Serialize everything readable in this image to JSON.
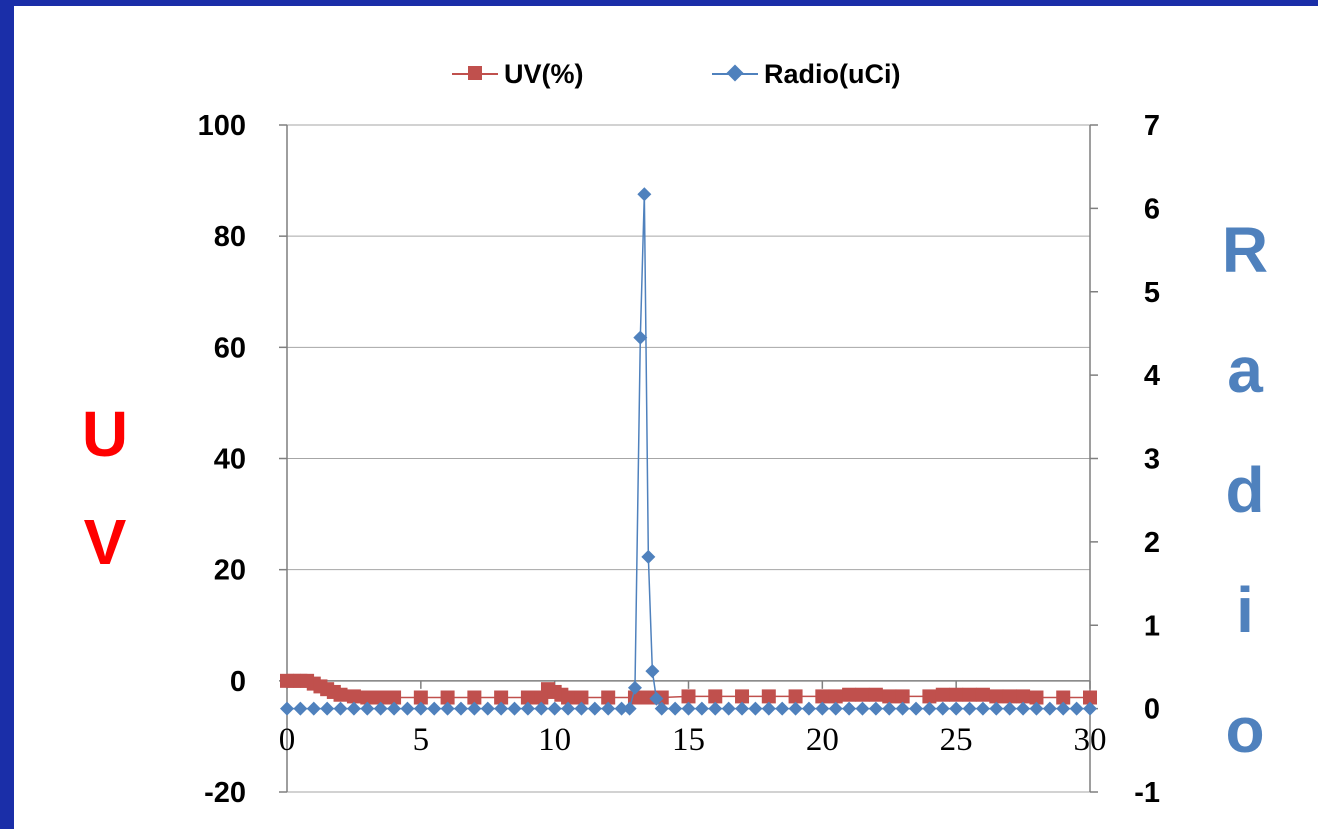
{
  "chart_data": {
    "type": "line",
    "title": "",
    "legend": {
      "placement": "top",
      "entries": [
        "UV(%)",
        "Radio(uCi)"
      ]
    },
    "xlabel": "",
    "ylabel_left": "UV",
    "ylabel_right": "Radio",
    "xlim": [
      0,
      30
    ],
    "ylim_left": [
      -20,
      100
    ],
    "ylim_right": [
      -1,
      7
    ],
    "x_ticks": [
      "0",
      "5",
      "10",
      "15",
      "20",
      "25",
      "30"
    ],
    "y_left_ticks": [
      "-20",
      "0",
      "20",
      "40",
      "60",
      "80",
      "100"
    ],
    "y_right_ticks": [
      "-1",
      "0",
      "1",
      "2",
      "3",
      "4",
      "5",
      "6",
      "7"
    ],
    "grid": true,
    "x_axis_at": 0,
    "colors": {
      "UV(%)": "#c0504d",
      "Radio(uCi)": "#4f81bd"
    },
    "series": [
      {
        "name": "UV(%)",
        "axis": "left",
        "marker": "square",
        "x": [
          0,
          0.25,
          0.5,
          0.75,
          1.0,
          1.25,
          1.5,
          1.75,
          2.0,
          2.5,
          3.0,
          3.5,
          4.0,
          5.0,
          6.0,
          7.0,
          8.0,
          9.0,
          9.5,
          9.75,
          10.0,
          10.25,
          10.5,
          11.0,
          12.0,
          13.0,
          13.25,
          13.5,
          13.75,
          14.0,
          15.0,
          16.0,
          17.0,
          18.0,
          19.0,
          20.0,
          20.5,
          21.0,
          21.5,
          22.0,
          22.5,
          23.0,
          24.0,
          24.5,
          25.0,
          25.5,
          26.0,
          26.5,
          27.0,
          27.5,
          28.0,
          29.0,
          30.0
        ],
        "y": [
          0,
          0,
          0,
          0,
          -0.5,
          -1,
          -1.5,
          -2,
          -2.5,
          -2.8,
          -3,
          -3,
          -3,
          -3,
          -3,
          -3,
          -3,
          -3,
          -3,
          -1.5,
          -2,
          -2.5,
          -3,
          -3,
          -3,
          -3,
          -3,
          -3,
          -3,
          -3,
          -2.8,
          -2.8,
          -2.8,
          -2.8,
          -2.8,
          -2.8,
          -2.8,
          -2.5,
          -2.5,
          -2.5,
          -2.8,
          -2.8,
          -2.8,
          -2.5,
          -2.5,
          -2.5,
          -2.5,
          -2.8,
          -2.8,
          -2.8,
          -3,
          -3,
          -3
        ]
      },
      {
        "name": "Radio(uCi)",
        "axis": "right",
        "marker": "diamond",
        "x": [
          0,
          0.5,
          1,
          1.5,
          2,
          2.5,
          3,
          3.5,
          4,
          4.5,
          5,
          5.5,
          6,
          6.5,
          7,
          7.5,
          8,
          8.5,
          9,
          9.5,
          10,
          10.5,
          11,
          11.5,
          12,
          12.5,
          12.8,
          13.0,
          13.2,
          13.35,
          13.5,
          13.65,
          13.8,
          14.0,
          14.5,
          15,
          15.5,
          16,
          16.5,
          17,
          17.5,
          18,
          18.5,
          19,
          19.5,
          20,
          20.5,
          21,
          21.5,
          22,
          22.5,
          23,
          23.5,
          24,
          24.5,
          25,
          25.5,
          26,
          26.5,
          27,
          27.5,
          28,
          28.5,
          29,
          29.5,
          30
        ],
        "y": [
          0,
          0,
          0,
          0,
          0,
          0,
          0,
          0,
          0,
          0,
          0,
          0,
          0,
          0,
          0,
          0,
          0,
          0,
          0,
          0,
          0,
          0,
          0,
          0,
          0,
          0,
          0,
          0.25,
          4.45,
          6.17,
          1.82,
          0.45,
          0.12,
          0,
          0,
          0,
          0,
          0,
          0,
          0,
          0,
          0,
          0,
          0,
          0,
          0,
          0,
          0,
          0,
          0,
          0,
          0,
          0,
          0,
          0,
          0,
          0,
          0,
          0,
          0,
          0,
          0,
          0,
          0,
          0,
          0
        ]
      }
    ]
  }
}
